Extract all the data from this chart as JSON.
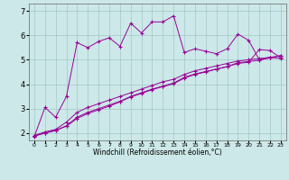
{
  "xlabel": "Windchill (Refroidissement éolien,°C)",
  "background_color": "#cce8e8",
  "line_color": "#990099",
  "xlim": [
    -0.5,
    23.5
  ],
  "ylim": [
    1.7,
    7.3
  ],
  "xticks": [
    0,
    1,
    2,
    3,
    4,
    5,
    6,
    7,
    8,
    9,
    10,
    11,
    12,
    13,
    14,
    15,
    16,
    17,
    18,
    19,
    20,
    21,
    22,
    23
  ],
  "yticks": [
    2,
    3,
    4,
    5,
    6,
    7
  ],
  "series1_x": [
    0,
    1,
    2,
    3,
    4,
    5,
    6,
    7,
    8,
    9,
    10,
    11,
    12,
    13,
    14,
    15,
    16,
    17,
    18,
    19,
    20,
    21,
    22,
    23
  ],
  "series1_y": [
    1.85,
    3.05,
    2.65,
    3.5,
    5.7,
    5.5,
    5.75,
    5.9,
    5.55,
    6.5,
    6.1,
    6.55,
    6.55,
    6.8,
    5.3,
    5.45,
    5.35,
    5.25,
    5.45,
    6.05,
    5.8,
    5.0,
    5.1,
    5.05
  ],
  "series2_x": [
    0,
    1,
    2,
    3,
    4,
    5,
    6,
    7,
    8,
    9,
    10,
    11,
    12,
    13,
    14,
    15,
    16,
    17,
    18,
    19,
    20,
    21,
    22,
    23
  ],
  "series2_y": [
    1.9,
    2.05,
    2.15,
    2.45,
    2.85,
    3.05,
    3.2,
    3.35,
    3.5,
    3.65,
    3.8,
    3.95,
    4.1,
    4.2,
    4.4,
    4.55,
    4.65,
    4.75,
    4.85,
    4.95,
    5.0,
    5.05,
    5.1,
    5.15
  ],
  "series3_x": [
    0,
    1,
    2,
    3,
    4,
    5,
    6,
    7,
    8,
    9,
    10,
    11,
    12,
    13,
    14,
    15,
    16,
    17,
    18,
    19,
    20,
    21,
    22,
    23
  ],
  "series3_y": [
    1.88,
    2.0,
    2.1,
    2.3,
    2.65,
    2.85,
    3.0,
    3.15,
    3.3,
    3.5,
    3.65,
    3.8,
    3.92,
    4.05,
    4.28,
    4.42,
    4.52,
    4.62,
    4.72,
    4.88,
    4.93,
    4.98,
    5.08,
    5.18
  ],
  "series4_x": [
    0,
    1,
    2,
    3,
    4,
    5,
    6,
    7,
    8,
    9,
    10,
    11,
    12,
    13,
    14,
    15,
    16,
    17,
    18,
    19,
    20,
    21,
    22,
    23
  ],
  "series4_y": [
    1.88,
    2.0,
    2.12,
    2.28,
    2.6,
    2.8,
    2.95,
    3.1,
    3.28,
    3.48,
    3.62,
    3.78,
    3.9,
    4.02,
    4.25,
    4.4,
    4.5,
    4.62,
    4.72,
    4.85,
    4.9,
    5.42,
    5.38,
    5.08
  ]
}
